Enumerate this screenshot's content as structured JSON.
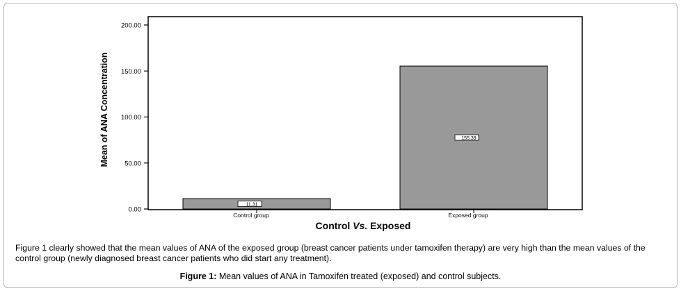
{
  "chart_data": {
    "type": "bar",
    "categories": [
      "Control group",
      "Exposed group"
    ],
    "values": [
      11.31,
      155.39
    ],
    "data_labels": [
      "11.31",
      "155.39"
    ],
    "xlabel": "Control Vs. Exposed",
    "xlabel_parts": {
      "pre": "Control ",
      "italic": "Vs.",
      "post": " Exposed"
    },
    "ylabel": "Mean of ANA Concentration",
    "ylim": [
      0,
      200
    ],
    "yticks": [
      "0.00",
      "50.00",
      "100.00",
      "150.00",
      "200.00"
    ],
    "ytick_values": [
      0,
      50,
      100,
      150,
      200
    ],
    "bar_color": "#999999",
    "grid": false,
    "legend": "none"
  },
  "caption": {
    "paragraph": "Figure 1 clearly showed that the mean values of ANA of the exposed group (breast cancer patients under tamoxifen therapy) are very high than the mean values of the control group (newly diagnosed breast cancer patients who did start any treatment).",
    "figure_label": "Figure 1:",
    "figure_text": " Mean values of ANA in Tamoxifen treated (exposed) and control subjects."
  }
}
